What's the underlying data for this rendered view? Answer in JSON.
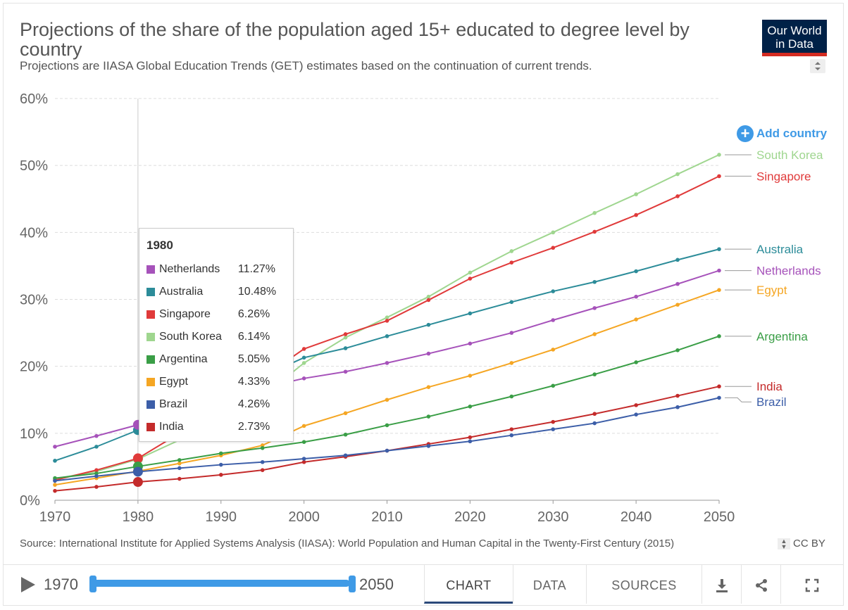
{
  "header": {
    "title": "Projections of the share of the population aged 15+ educated to degree level by country",
    "subtitle": "Projections are IIASA Global Education Trends (GET) estimates based on the continuation of current trends.",
    "logo_line1": "Our World",
    "logo_line2": "in Data"
  },
  "add_country_label": "Add country",
  "tooltip": {
    "year": "1980",
    "rows": [
      {
        "name": "Netherlands",
        "value": "11.27%",
        "color": "#a652ba"
      },
      {
        "name": "Australia",
        "value": "10.48%",
        "color": "#2c8c99"
      },
      {
        "name": "Singapore",
        "value": "6.26%",
        "color": "#e03a3a"
      },
      {
        "name": "South Korea",
        "value": "6.14%",
        "color": "#9fd68f"
      },
      {
        "name": "Argentina",
        "value": "5.05%",
        "color": "#3a9e46"
      },
      {
        "name": "Egypt",
        "value": "4.33%",
        "color": "#f5a623"
      },
      {
        "name": "Brazil",
        "value": "4.26%",
        "color": "#3c5ea8"
      },
      {
        "name": "India",
        "value": "2.73%",
        "color": "#c42b2b"
      }
    ]
  },
  "source": "Source: International Institute for Applied Systems Analysis (IIASA): World Population and Human Capital in the Twenty-First Century (2015)",
  "license": "CC BY",
  "footer": {
    "start_year": "1970",
    "end_year": "2050",
    "tabs": [
      "CHART",
      "DATA",
      "SOURCES"
    ]
  },
  "chart_data": {
    "type": "line",
    "title": "Projections of the share of the population aged 15+ educated to degree level by country",
    "x": [
      1970,
      1975,
      1980,
      1985,
      1990,
      1995,
      2000,
      2005,
      2010,
      2015,
      2020,
      2025,
      2030,
      2035,
      2040,
      2045,
      2050
    ],
    "xlim": [
      1970,
      2050
    ],
    "ylim": [
      0,
      60
    ],
    "y_ticks": [
      "0%",
      "10%",
      "20%",
      "30%",
      "40%",
      "50%",
      "60%"
    ],
    "x_ticks": [
      "1970",
      "1980",
      "1990",
      "2000",
      "2010",
      "2020",
      "2030",
      "2040",
      "2050"
    ],
    "hover_year": 1980,
    "grid": true,
    "series": [
      {
        "name": "South Korea",
        "color": "#9fd68f",
        "values": [
          3.2,
          4.3,
          6.14,
          9.0,
          12.5,
          15.5,
          20.5,
          24.3,
          27.3,
          30.4,
          34.0,
          37.2,
          40.0,
          42.9,
          45.7,
          48.7,
          51.6
        ]
      },
      {
        "name": "Singapore",
        "color": "#e03a3a",
        "values": [
          3.0,
          4.5,
          6.26,
          10.0,
          14.0,
          18.3,
          22.6,
          24.8,
          26.8,
          29.9,
          33.1,
          35.5,
          37.7,
          40.1,
          42.6,
          45.4,
          48.4
        ]
      },
      {
        "name": "Australia",
        "color": "#2c8c99",
        "values": [
          5.9,
          8.0,
          10.48,
          13.5,
          16.0,
          18.5,
          21.3,
          22.7,
          24.5,
          26.2,
          27.9,
          29.6,
          31.2,
          32.6,
          34.2,
          35.9,
          37.5
        ]
      },
      {
        "name": "Netherlands",
        "color": "#a652ba",
        "values": [
          8.0,
          9.6,
          11.27,
          13.5,
          15.5,
          16.8,
          18.2,
          19.2,
          20.5,
          21.9,
          23.4,
          25.0,
          26.9,
          28.7,
          30.4,
          32.3,
          34.3
        ]
      },
      {
        "name": "Egypt",
        "color": "#f5a623",
        "values": [
          2.3,
          3.3,
          4.33,
          5.5,
          6.7,
          8.2,
          11.1,
          13.0,
          15.0,
          16.9,
          18.6,
          20.5,
          22.5,
          24.8,
          27.0,
          29.2,
          31.4
        ]
      },
      {
        "name": "Argentina",
        "color": "#3a9e46",
        "values": [
          3.3,
          4.0,
          5.05,
          6.0,
          7.0,
          7.8,
          8.7,
          9.8,
          11.2,
          12.5,
          14.0,
          15.5,
          17.1,
          18.8,
          20.6,
          22.4,
          24.5
        ]
      },
      {
        "name": "India",
        "color": "#c42b2b",
        "values": [
          1.4,
          2.0,
          2.73,
          3.2,
          3.8,
          4.5,
          5.7,
          6.5,
          7.4,
          8.4,
          9.4,
          10.6,
          11.7,
          12.9,
          14.2,
          15.6,
          17.0
        ]
      },
      {
        "name": "Brazil",
        "color": "#3c5ea8",
        "values": [
          2.9,
          3.6,
          4.26,
          4.8,
          5.3,
          5.7,
          6.2,
          6.7,
          7.4,
          8.1,
          8.8,
          9.7,
          10.6,
          11.5,
          12.8,
          13.9,
          15.3
        ]
      }
    ]
  },
  "colors": {
    "accent": "#3f9ae6",
    "logo_bg": "#002147",
    "logo_bar": "#d42b21"
  }
}
